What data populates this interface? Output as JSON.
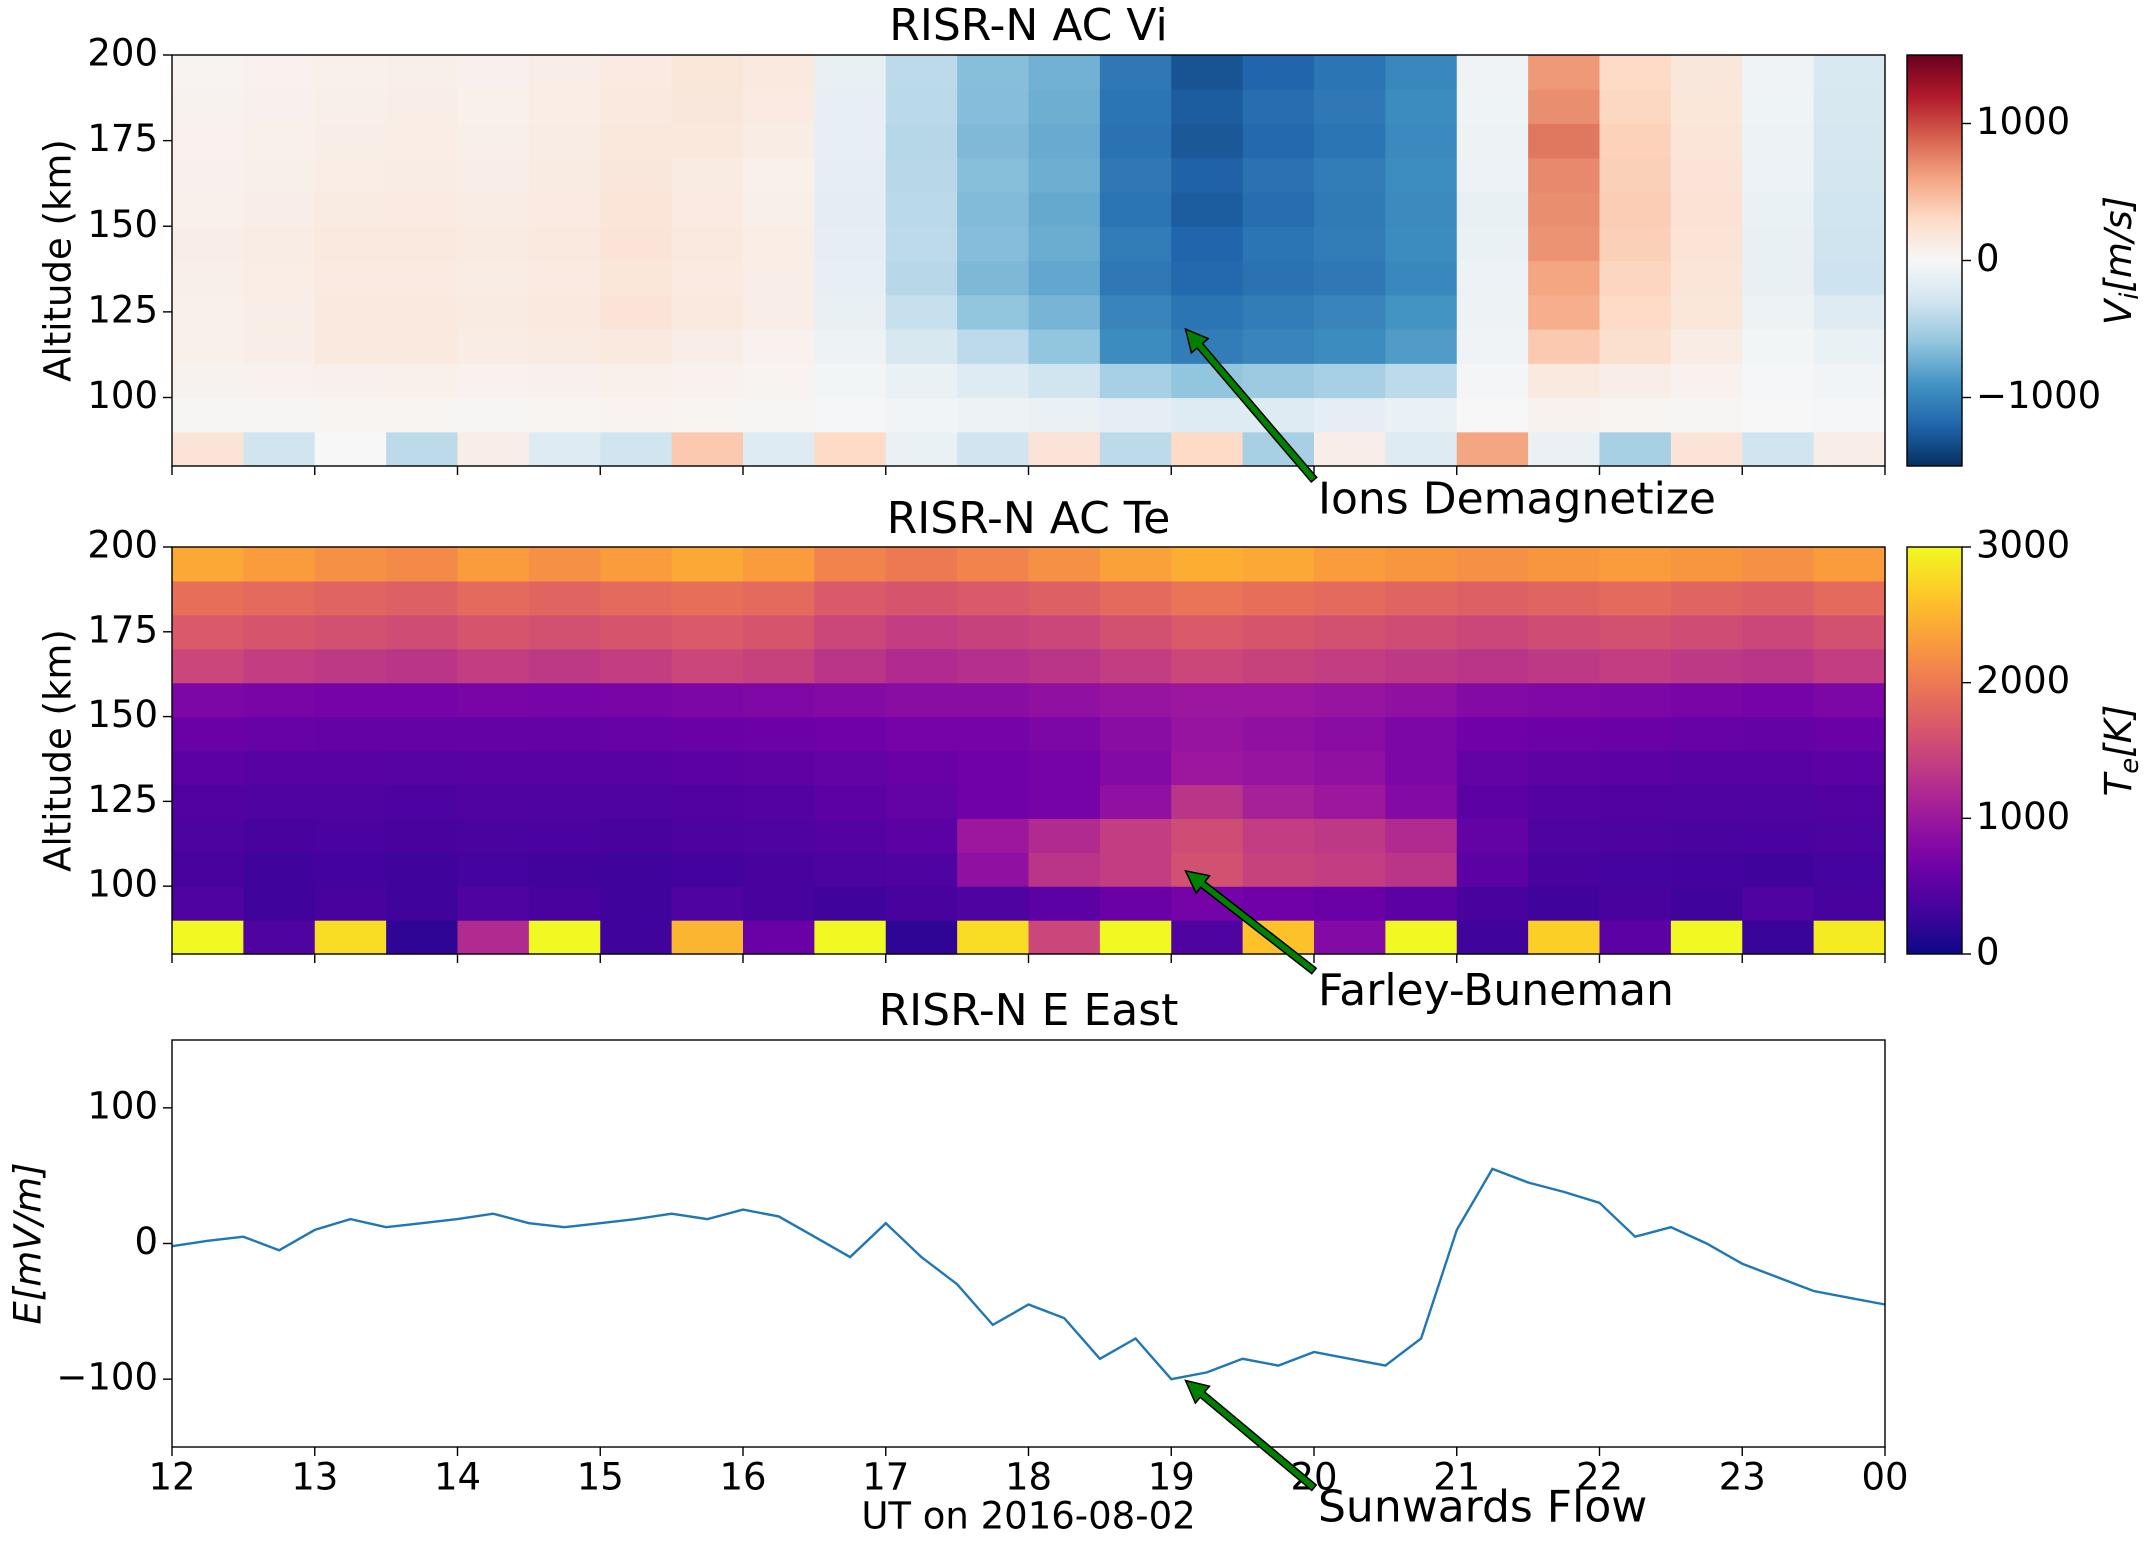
{
  "chart_data": [
    {
      "type": "heatmap",
      "title": "RISR-N AC Vi",
      "ylabel": "Altitude (km)",
      "xlim": [
        12,
        24
      ],
      "ylim": [
        80,
        200
      ],
      "yticks": [
        100,
        125,
        150,
        175,
        200
      ],
      "xticks": [
        12,
        13,
        14,
        15,
        16,
        17,
        18,
        19,
        20,
        21,
        22,
        23,
        24
      ],
      "xbins": [
        12,
        12.5,
        13,
        13.5,
        14,
        14.5,
        15,
        15.5,
        16,
        16.5,
        17,
        17.5,
        18,
        18.5,
        19,
        19.5,
        20,
        20.5,
        21,
        21.5,
        22,
        22.5,
        23,
        23.5,
        24
      ],
      "ybins": [
        80,
        90,
        100,
        110,
        120,
        130,
        140,
        150,
        160,
        170,
        180,
        190,
        200
      ],
      "values": [
        [
          200,
          -300,
          0,
          -400,
          100,
          -200,
          -300,
          400,
          -200,
          300,
          -100,
          -300,
          200,
          -400,
          300,
          -500,
          100,
          -200,
          600,
          -100,
          -500,
          200,
          -300,
          100
        ],
        [
          20,
          20,
          30,
          30,
          20,
          30,
          40,
          30,
          20,
          -20,
          -50,
          -80,
          -100,
          -150,
          -200,
          -200,
          -150,
          -100,
          0,
          50,
          30,
          20,
          0,
          -20
        ],
        [
          50,
          60,
          70,
          80,
          60,
          70,
          80,
          60,
          40,
          -40,
          -100,
          -200,
          -300,
          -500,
          -600,
          -550,
          -500,
          -400,
          -30,
          150,
          100,
          60,
          -20,
          -50
        ],
        [
          80,
          100,
          150,
          150,
          120,
          130,
          150,
          100,
          60,
          -80,
          -250,
          -400,
          -600,
          -950,
          -1050,
          -1000,
          -950,
          -850,
          -60,
          400,
          250,
          120,
          -40,
          -100
        ],
        [
          80,
          100,
          150,
          150,
          130,
          150,
          200,
          150,
          100,
          -120,
          -350,
          -600,
          -700,
          -1000,
          -1100,
          -1050,
          -1000,
          -900,
          -80,
          550,
          300,
          180,
          -80,
          -200
        ],
        [
          90,
          110,
          140,
          140,
          120,
          140,
          180,
          140,
          100,
          -140,
          -420,
          -680,
          -780,
          -1080,
          -1180,
          -1120,
          -1080,
          -980,
          -90,
          600,
          330,
          190,
          -120,
          -320
        ],
        [
          100,
          120,
          150,
          150,
          130,
          150,
          200,
          150,
          110,
          -150,
          -400,
          -650,
          -750,
          -1050,
          -1200,
          -1100,
          -1050,
          -950,
          -100,
          680,
          360,
          210,
          -110,
          -310
        ],
        [
          80,
          100,
          130,
          140,
          120,
          140,
          190,
          140,
          90,
          -160,
          -410,
          -660,
          -770,
          -1100,
          -1250,
          -1150,
          -1070,
          -960,
          -110,
          700,
          380,
          220,
          -100,
          -300
        ],
        [
          70,
          90,
          110,
          120,
          100,
          130,
          170,
          130,
          80,
          -150,
          -420,
          -640,
          -740,
          -1080,
          -1220,
          -1120,
          -1050,
          -940,
          -90,
          720,
          360,
          200,
          -90,
          -280
        ],
        [
          60,
          80,
          100,
          110,
          90,
          120,
          160,
          160,
          120,
          -140,
          -430,
          -670,
          -760,
          -1120,
          -1280,
          -1180,
          -1100,
          -970,
          -80,
          800,
          350,
          190,
          -80,
          -260
        ],
        [
          50,
          70,
          90,
          100,
          80,
          110,
          150,
          170,
          140,
          -130,
          -410,
          -650,
          -740,
          -1100,
          -1250,
          -1150,
          -1080,
          -950,
          -70,
          700,
          320,
          180,
          -70,
          -250
        ],
        [
          40,
          60,
          80,
          90,
          70,
          100,
          140,
          180,
          150,
          -120,
          -400,
          -640,
          -720,
          -1080,
          -1300,
          -1200,
          -1100,
          -980,
          -60,
          650,
          300,
          170,
          -60,
          -240
        ]
      ],
      "colormap": "RdBu_r",
      "clim": [
        -1500,
        1500
      ],
      "cticks": [
        {
          "value": -1000,
          "label": "−1000"
        },
        0,
        1000
      ],
      "colorbar_label": [
        "V",
        "i",
        "[m/s]"
      ],
      "annotations": [
        {
          "text": "Ions Demagnetize",
          "xy": [
            19.1,
            120
          ],
          "xytext": [
            20,
            76
          ],
          "color": "#008000"
        }
      ]
    },
    {
      "type": "heatmap",
      "title": "RISR-N AC Te",
      "ylabel": "Altitude (km)",
      "xlim": [
        12,
        24
      ],
      "ylim": [
        80,
        200
      ],
      "yticks": [
        100,
        125,
        150,
        175,
        200
      ],
      "xticks": [
        12,
        13,
        14,
        15,
        16,
        17,
        18,
        19,
        20,
        21,
        22,
        23,
        24
      ],
      "xbins": [
        12,
        12.5,
        13,
        13.5,
        14,
        14.5,
        15,
        15.5,
        16,
        16.5,
        17,
        17.5,
        18,
        18.5,
        19,
        19.5,
        20,
        20.5,
        21,
        21.5,
        22,
        22.5,
        23,
        23.5,
        24
      ],
      "ybins": [
        80,
        90,
        100,
        110,
        120,
        130,
        140,
        150,
        160,
        170,
        180,
        190,
        200
      ],
      "values": [
        [
          3000,
          400,
          2800,
          200,
          1200,
          3000,
          300,
          2500,
          600,
          3000,
          200,
          2800,
          1500,
          3000,
          400,
          2600,
          800,
          3000,
          300,
          2700,
          500,
          3000,
          250,
          2900
        ],
        [
          400,
          300,
          350,
          300,
          400,
          350,
          300,
          400,
          350,
          300,
          350,
          400,
          500,
          600,
          700,
          650,
          600,
          500,
          350,
          300,
          350,
          300,
          400,
          350
        ],
        [
          350,
          300,
          320,
          300,
          330,
          310,
          300,
          320,
          350,
          380,
          400,
          900,
          1300,
          1400,
          1600,
          1450,
          1400,
          1300,
          500,
          350,
          330,
          320,
          300,
          330
        ],
        [
          380,
          350,
          360,
          350,
          370,
          360,
          350,
          380,
          400,
          450,
          500,
          1000,
          1200,
          1400,
          1550,
          1400,
          1350,
          1200,
          550,
          400,
          380,
          370,
          360,
          380
        ],
        [
          420,
          400,
          400,
          390,
          410,
          400,
          400,
          420,
          450,
          500,
          550,
          650,
          700,
          900,
          1300,
          1100,
          1000,
          800,
          500,
          450,
          420,
          410,
          400,
          420
        ],
        [
          500,
          480,
          470,
          460,
          480,
          470,
          480,
          500,
          520,
          550,
          600,
          650,
          700,
          800,
          1000,
          950,
          900,
          750,
          550,
          520,
          500,
          480,
          470,
          500
        ],
        [
          600,
          580,
          560,
          560,
          570,
          570,
          580,
          600,
          620,
          650,
          700,
          700,
          750,
          850,
          950,
          900,
          850,
          750,
          650,
          620,
          600,
          580,
          570,
          600
        ],
        [
          750,
          720,
          700,
          700,
          720,
          710,
          720,
          750,
          780,
          800,
          850,
          850,
          900,
          950,
          1000,
          1000,
          950,
          900,
          800,
          780,
          750,
          720,
          700,
          750
        ],
        [
          1500,
          1400,
          1350,
          1300,
          1400,
          1350,
          1400,
          1500,
          1450,
          1300,
          1200,
          1250,
          1300,
          1400,
          1500,
          1450,
          1400,
          1350,
          1300,
          1350,
          1400,
          1350,
          1300,
          1400
        ],
        [
          1700,
          1650,
          1600,
          1550,
          1650,
          1600,
          1650,
          1700,
          1650,
          1500,
          1400,
          1450,
          1500,
          1600,
          1700,
          1650,
          1600,
          1550,
          1500,
          1550,
          1600,
          1550,
          1500,
          1600
        ],
        [
          1900,
          1850,
          1800,
          1750,
          1850,
          1800,
          1850,
          1900,
          1850,
          1700,
          1650,
          1700,
          1750,
          1850,
          1950,
          1900,
          1850,
          1800,
          1750,
          1800,
          1850,
          1800,
          1750,
          1850
        ],
        [
          2400,
          2300,
          2200,
          2150,
          2300,
          2200,
          2300,
          2400,
          2300,
          2100,
          2000,
          2100,
          2200,
          2350,
          2450,
          2400,
          2300,
          2250,
          2200,
          2250,
          2300,
          2250,
          2200,
          2300
        ]
      ],
      "colormap": "plasma",
      "clim": [
        0,
        3000
      ],
      "cticks": [
        0,
        1000,
        2000,
        3000
      ],
      "colorbar_label": [
        "T",
        "e",
        "[K]"
      ],
      "annotations": [
        {
          "text": "Farley-Buneman",
          "xy": [
            19.1,
            104.5
          ],
          "xytext": [
            20,
            75
          ],
          "color": "#008000"
        }
      ]
    },
    {
      "type": "line",
      "title": "RISR-N E East",
      "ylabel": "E[mV/m]",
      "xlabel": "UT on 2016-08-02",
      "xlim": [
        12,
        24
      ],
      "ylim": [
        -150,
        150
      ],
      "yticks": [
        {
          "value": -100,
          "label": "−100"
        },
        0,
        100
      ],
      "xticks": [
        12,
        13,
        14,
        15,
        16,
        17,
        18,
        19,
        20,
        21,
        22,
        23,
        {
          "value": 24,
          "label": "00"
        }
      ],
      "x": [
        12,
        12.25,
        12.5,
        12.75,
        13,
        13.25,
        13.5,
        13.75,
        14,
        14.25,
        14.5,
        14.75,
        15,
        15.25,
        15.5,
        15.75,
        16,
        16.25,
        16.5,
        16.75,
        17,
        17.25,
        17.5,
        17.75,
        18,
        18.25,
        18.5,
        18.75,
        19,
        19.25,
        19.5,
        19.75,
        20,
        20.25,
        20.5,
        20.75,
        21,
        21.25,
        21.5,
        21.75,
        22,
        22.25,
        22.5,
        22.75,
        23,
        23.25,
        23.5,
        23.75,
        24
      ],
      "values": [
        -2,
        2,
        5,
        -5,
        10,
        18,
        12,
        15,
        18,
        22,
        15,
        12,
        15,
        18,
        22,
        18,
        25,
        20,
        5,
        -10,
        15,
        -10,
        -30,
        -60,
        -45,
        -55,
        -85,
        -70,
        -100,
        -95,
        -85,
        -90,
        -80,
        -85,
        -90,
        -70,
        10,
        55,
        45,
        38,
        30,
        5,
        12,
        0,
        -15,
        -25,
        -35,
        -40,
        -45
      ],
      "color": "#1f77b4",
      "annotations": [
        {
          "text": "Sunwards Flow",
          "xy": [
            19.1,
            -101
          ],
          "xytext": [
            20,
            -180
          ],
          "color": "#008000"
        }
      ]
    }
  ]
}
